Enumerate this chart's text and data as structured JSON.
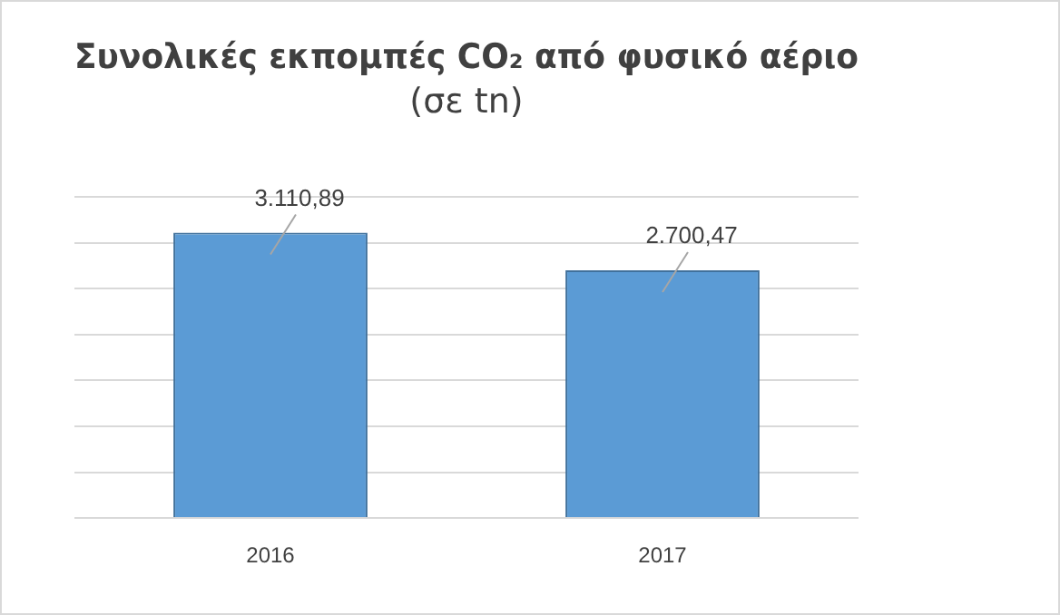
{
  "chart_data": {
    "type": "bar",
    "title": "Συνολικές εκπομπές CO₂ από φυσικό αέριο",
    "subtitle": "(σε tn)",
    "categories": [
      "2016",
      "2017"
    ],
    "values": [
      3110.89,
      2700.47
    ],
    "value_labels": [
      "3.110,89",
      "2.700,47"
    ],
    "color": "#5b9bd5",
    "ylim": [
      0,
      3500
    ],
    "yticks": [
      {
        "value": 0,
        "label": null
      },
      {
        "value": 500,
        "label": null
      },
      {
        "value": 1000,
        "label": null
      },
      {
        "value": 1500,
        "label": null
      },
      {
        "value": 2000,
        "label": null
      },
      {
        "value": 2500,
        "label": null
      },
      {
        "value": 3000,
        "label": null
      },
      {
        "value": 3500,
        "label": null
      }
    ],
    "grid": "y",
    "tick_labels": "x",
    "legend": false
  }
}
